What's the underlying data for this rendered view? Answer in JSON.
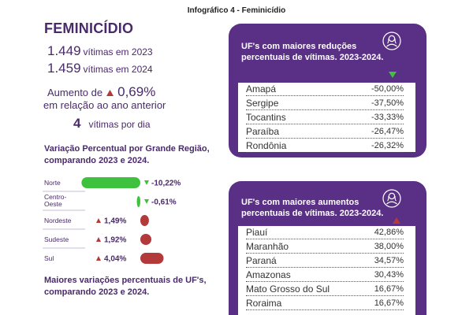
{
  "header": {
    "text": "Infográfico 4 - Feminicídio"
  },
  "title": "FEMINICÍDIO",
  "stats": [
    {
      "number": "1.449",
      "label": "vítimas em 2023"
    },
    {
      "number": "1.459",
      "label": "vítimas em 2024"
    }
  ],
  "increase": {
    "label": "Aumento de",
    "value": "0,69%",
    "subtext": "em relação ao ano anterior"
  },
  "per_day": {
    "number": "4",
    "label": "vítimas por dia"
  },
  "region_section_title": "Variação Percentual por Grande Região, comparando 2023 e 2024.",
  "uf_section_title": "Maiores variações percentuais de UF's, comparando 2023 e 2024.",
  "colors": {
    "purple": "#5a2f86",
    "text_purple": "#4a2a6b",
    "green": "#3ec23e",
    "red": "#b23a3a"
  },
  "icons": {
    "panel_icon": "woman-avatar-icon",
    "down": "triangle-down-icon",
    "up": "triangle-up-icon"
  },
  "chart_data": [
    {
      "type": "bar",
      "categories": [
        "Norte",
        "Centro-Oeste",
        "Nordeste",
        "Sudeste",
        "Sul"
      ],
      "values": [
        -10.22,
        -0.61,
        1.49,
        1.92,
        4.04
      ],
      "value_labels": [
        "-10,22%",
        "-0,61%",
        "1,49%",
        "1,92%",
        "4,04%"
      ],
      "orientation": "horizontal",
      "title": "Variação Percentual por Grande Região, comparando 2023 e 2024."
    },
    {
      "type": "table",
      "title": "UF's com maiores reduções percentuais de vítimas. 2023-2024.",
      "rows": [
        {
          "uf": "Amapá",
          "value": "-50,00%"
        },
        {
          "uf": "Sergipe",
          "value": "-37,50%"
        },
        {
          "uf": "Tocantins",
          "value": "-33,33%"
        },
        {
          "uf": "Paraíba",
          "value": "-26,47%"
        },
        {
          "uf": "Rondônia",
          "value": "-26,32%"
        }
      ]
    },
    {
      "type": "table",
      "title": "UF's com maiores aumentos percentuais de vítimas. 2023-2024.",
      "rows": [
        {
          "uf": "Piauí",
          "value": "42,86%"
        },
        {
          "uf": "Maranhão",
          "value": "38,00%"
        },
        {
          "uf": "Paraná",
          "value": "34,57%"
        },
        {
          "uf": "Amazonas",
          "value": "30,43%"
        },
        {
          "uf": "Mato Grosso do Sul",
          "value": "16,67%"
        },
        {
          "uf": "Roraima",
          "value": "16,67%"
        }
      ]
    }
  ]
}
